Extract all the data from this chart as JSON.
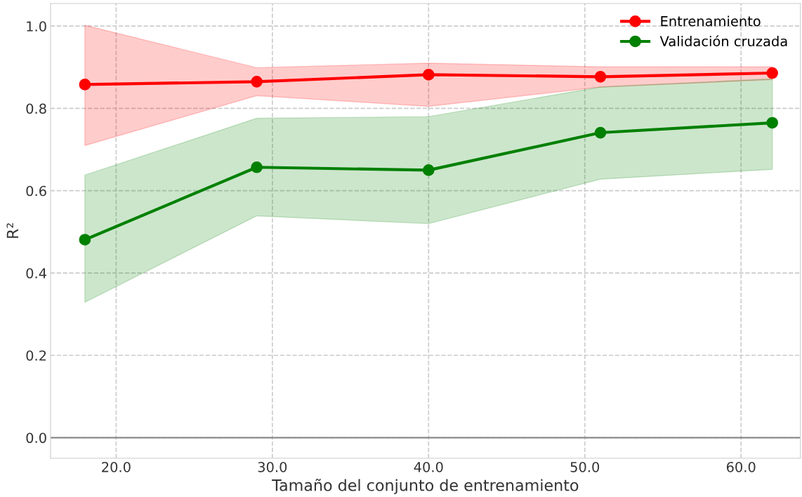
{
  "chart_data": {
    "type": "line",
    "xlabel": "Tamaño del conjunto de entrenamiento",
    "ylabel": "R²",
    "x": [
      18,
      29,
      40,
      51,
      62
    ],
    "series": [
      {
        "name": "Entrenamiento",
        "color": "#ff0000",
        "values": [
          0.858,
          0.865,
          0.882,
          0.877,
          0.886
        ],
        "lower": [
          0.71,
          0.831,
          0.805,
          0.852,
          0.87
        ],
        "upper": [
          1.002,
          0.899,
          0.91,
          0.901,
          0.901
        ]
      },
      {
        "name": "Validación cruzada",
        "color": "#008000",
        "values": [
          0.481,
          0.657,
          0.65,
          0.741,
          0.765
        ],
        "lower": [
          0.329,
          0.539,
          0.52,
          0.628,
          0.652
        ],
        "upper": [
          0.638,
          0.776,
          0.78,
          0.852,
          0.872
        ]
      }
    ],
    "xlim": [
      15.8,
      63.8
    ],
    "ylim": [
      -0.05,
      1.055
    ],
    "xticks": [
      {
        "value": 20,
        "label": "20.0"
      },
      {
        "value": 30,
        "label": "30.0"
      },
      {
        "value": 40,
        "label": "40.0"
      },
      {
        "value": 50,
        "label": "50.0"
      },
      {
        "value": 60,
        "label": "60.0"
      }
    ],
    "yticks": [
      {
        "value": 0,
        "label": "0.0"
      },
      {
        "value": 0.2,
        "label": "0.2"
      },
      {
        "value": 0.4,
        "label": "0.4"
      },
      {
        "value": 0.6,
        "label": "0.6"
      },
      {
        "value": 0.8,
        "label": "0.8"
      },
      {
        "value": 1.0,
        "label": "1.0"
      }
    ],
    "ref_lines": [
      {
        "axis": "y",
        "value": 0,
        "color": "#808080",
        "line_style": "solid"
      }
    ],
    "grid": true,
    "legend": "top right",
    "marker": "circle",
    "line_style": "solid"
  }
}
